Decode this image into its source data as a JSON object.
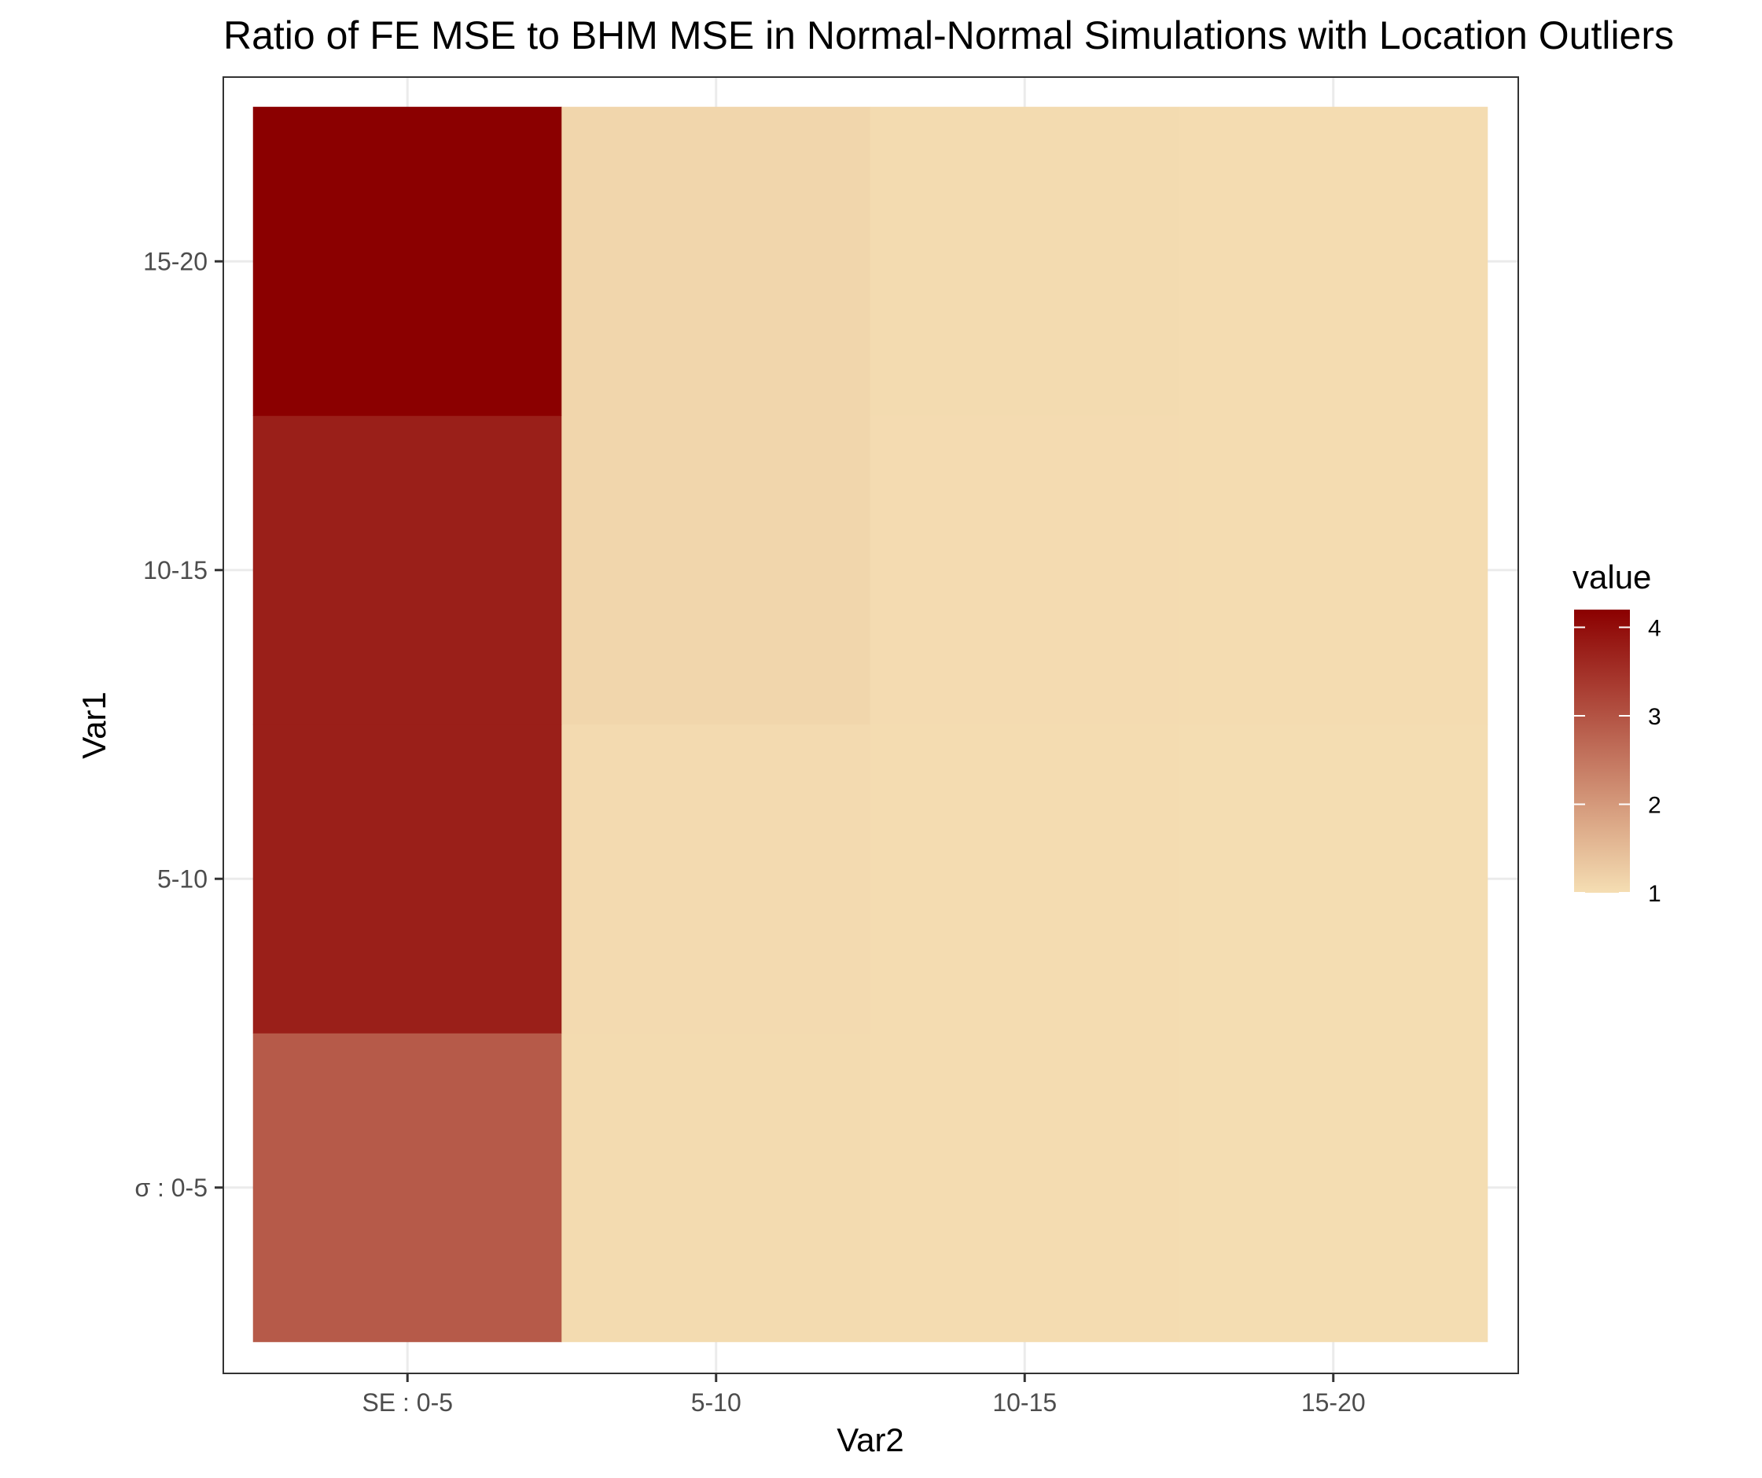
{
  "chart_data": {
    "type": "heatmap",
    "title": "Ratio of FE MSE to BHM MSE in Normal-Normal Simulations with Location Outliers",
    "xlabel": "Var2",
    "ylabel": "Var1",
    "x_categories": [
      "SE : 0-5",
      "5-10",
      "10-15",
      "15-20"
    ],
    "y_categories": [
      "σ : 0-5",
      "5-10",
      "10-15",
      "15-20"
    ],
    "values": [
      [
        2.9,
        1.05,
        1.03,
        1.02
      ],
      [
        3.75,
        1.06,
        1.03,
        1.02
      ],
      [
        3.75,
        1.12,
        1.04,
        1.03
      ],
      [
        4.2,
        1.12,
        1.05,
        1.03
      ]
    ],
    "legend": {
      "title": "value",
      "ticks": [
        1,
        2,
        3,
        4
      ],
      "range": [
        1,
        4.2
      ],
      "low_color": "#f5deb3",
      "high_color": "#8b0000",
      "placement": "right"
    },
    "grid": true,
    "theme": "bw"
  }
}
